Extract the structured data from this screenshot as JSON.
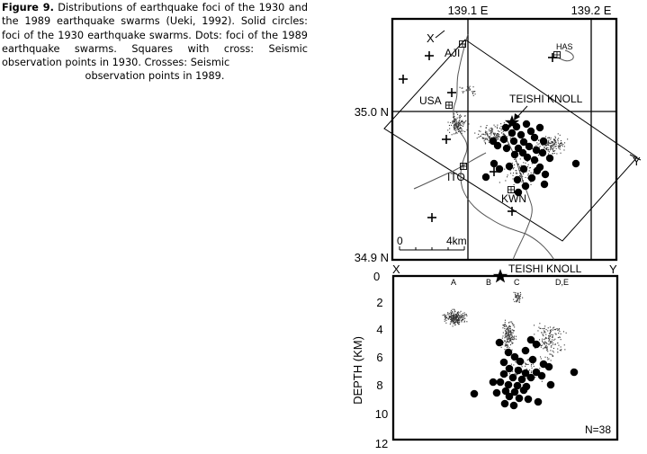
{
  "caption": {
    "label": "Figure 9.",
    "text": " Distributions of earthquake foci of the 1930 and the 1989 earthquake swarms (Ueki, 1992). Solid circles: foci of the 1930 earthquake swarms. Dots: foci of the 1989 earthquake swarms. Squares with cross: Seismic observation points in 1930. Crosses: Seismic",
    "text_last": "observation points in 1989."
  },
  "map": {
    "lon_labels": [
      "139.1 E",
      "139.2 E"
    ],
    "lat_labels": [
      "35.0 N",
      "34.9 N"
    ],
    "places": {
      "aji": "AJI",
      "has": "HAS",
      "usa": "USA",
      "ito": "ITO",
      "kwn": "KWN",
      "teishi": "TEISHI KNOLL"
    },
    "section_ends": {
      "x": "X",
      "y": "Y"
    },
    "scale_bar": {
      "start": "0",
      "end": "4km"
    }
  },
  "section": {
    "top_left": "0",
    "end_x": "X",
    "end_y": "Y",
    "teishi": "TEISHI KNOLL",
    "clusters": [
      "A",
      "B",
      "C",
      "D,E"
    ],
    "ylabel": "DEPTH (KM)",
    "depth_ticks": [
      "2",
      "4",
      "6",
      "8",
      "10",
      "12"
    ],
    "n_label": "N=38"
  },
  "colors": {
    "ink": "#000000",
    "coast": "#555555"
  }
}
